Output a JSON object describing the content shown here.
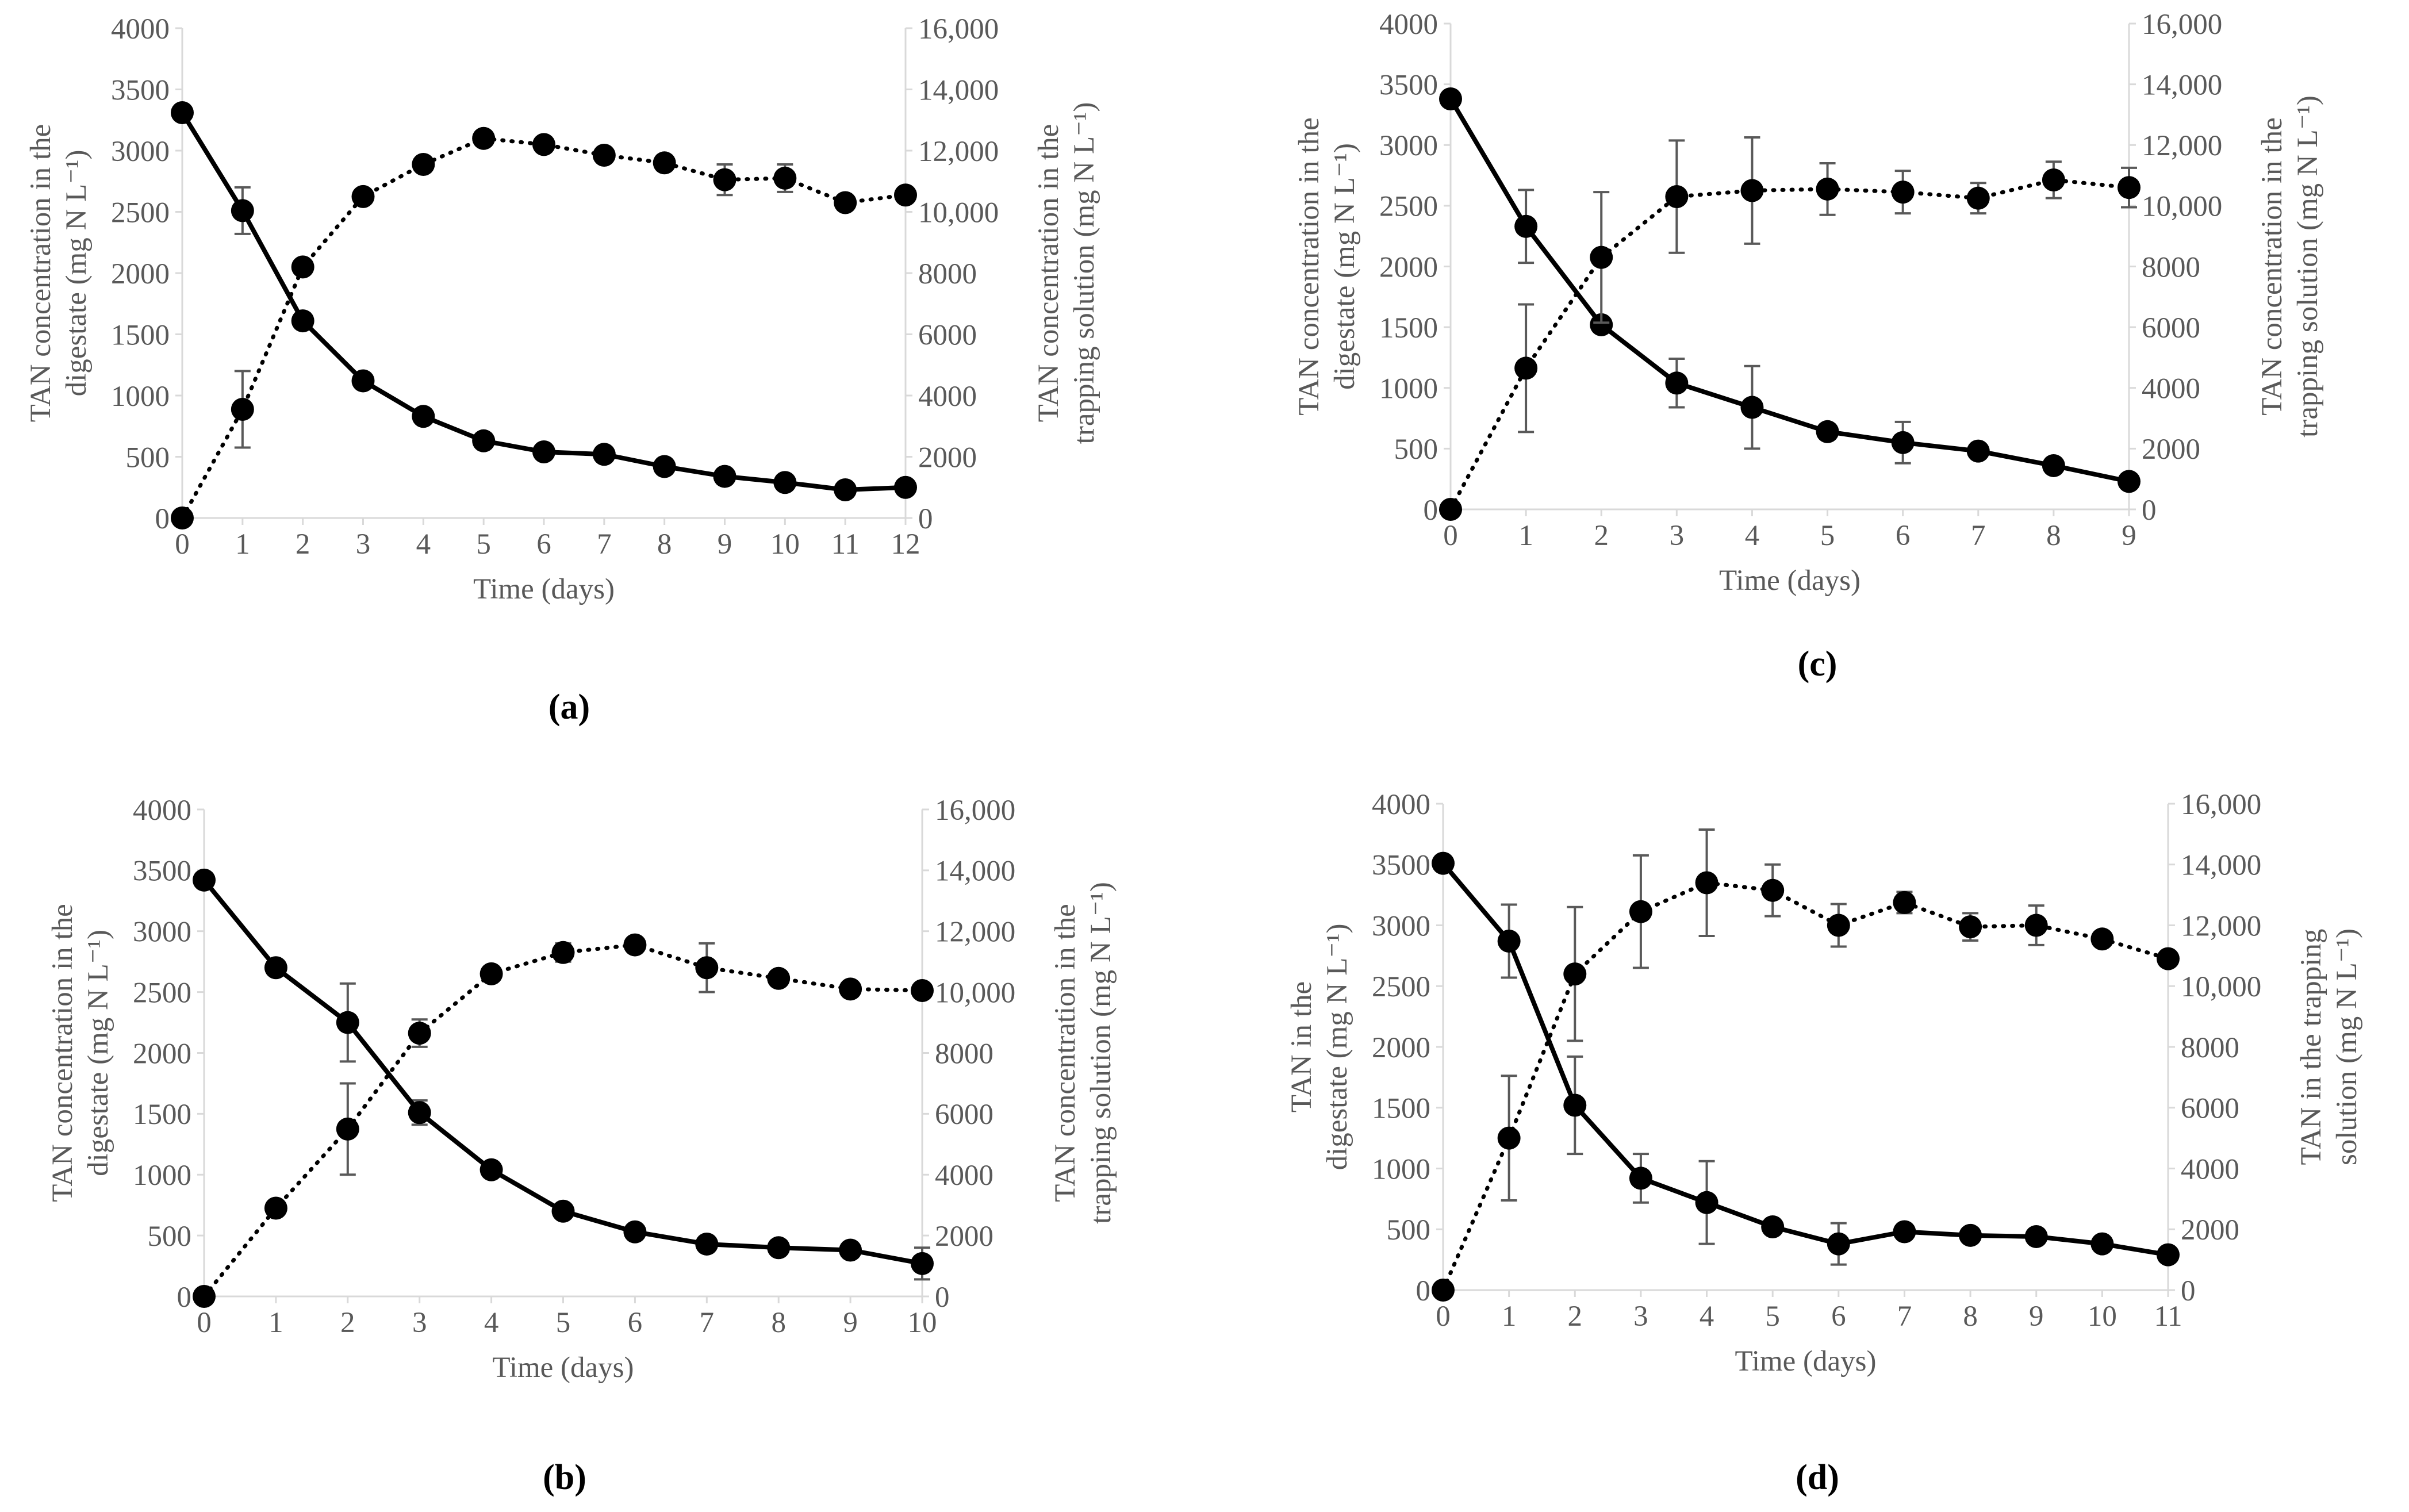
{
  "axis_color": "#d9d9d9",
  "tick_label_color": "#595959",
  "series_color": "#000000",
  "errorbar_color": "#595959",
  "chart_data": [
    {
      "panel": "a",
      "panel_label": "(a)",
      "type": "line",
      "xlabel": "Time (days)",
      "ylabel_left": [
        "TAN concentration in the",
        "digestate (mg N L⁻¹)"
      ],
      "ylabel_right": [
        "TAN concentration in the",
        "trapping  solution (mg N L⁻¹)"
      ],
      "x": [
        0,
        1,
        2,
        3,
        4,
        5,
        6,
        7,
        8,
        9,
        10,
        11,
        12
      ],
      "xlim": [
        0,
        12
      ],
      "ylim_left": [
        0,
        4000
      ],
      "ylim_right": [
        0,
        16000
      ],
      "left_ticks": [
        "0",
        "500",
        "1000",
        "1500",
        "2000",
        "2500",
        "3000",
        "3500",
        "4000"
      ],
      "right_ticks": [
        "0",
        "2000",
        "4000",
        "6000",
        "8000",
        "10,000",
        "12,000",
        "14,000",
        "16,000"
      ],
      "series": [
        {
          "axis": "left",
          "style": "solid",
          "values": [
            3310,
            2510,
            1610,
            1120,
            830,
            630,
            540,
            520,
            420,
            340,
            290,
            230,
            250
          ],
          "errors": [
            0,
            190,
            60,
            0,
            0,
            0,
            0,
            0,
            0,
            0,
            0,
            0,
            0
          ]
        },
        {
          "axis": "right",
          "style": "dotted",
          "values": [
            0,
            3550,
            8200,
            10500,
            11550,
            12400,
            12200,
            11850,
            11600,
            11050,
            11100,
            10300,
            10550
          ],
          "errors": [
            0,
            1250,
            0,
            0,
            0,
            0,
            0,
            0,
            0,
            500,
            450,
            0,
            0
          ]
        }
      ]
    },
    {
      "panel": "c",
      "panel_label": "(c)",
      "type": "line",
      "xlabel": "Time (days)",
      "ylabel_left": [
        "TAN concentration in the",
        "digestate (mg N L⁻¹)"
      ],
      "ylabel_right": [
        "TAN concentration in the",
        "trapping  solution (mg N L⁻¹)"
      ],
      "x": [
        0,
        1,
        2,
        3,
        4,
        5,
        6,
        7,
        8,
        9
      ],
      "xlim": [
        0,
        9
      ],
      "ylim_left": [
        0,
        4000
      ],
      "ylim_right": [
        0,
        16000
      ],
      "left_ticks": [
        "0",
        "500",
        "1000",
        "1500",
        "2000",
        "2500",
        "3000",
        "3500",
        "4000"
      ],
      "right_ticks": [
        "0",
        "2000",
        "4000",
        "6000",
        "8000",
        "10,000",
        "12,000",
        "14,000",
        "16,000"
      ],
      "series": [
        {
          "axis": "left",
          "style": "solid",
          "values": [
            3380,
            2330,
            1520,
            1040,
            840,
            640,
            550,
            480,
            360,
            230
          ],
          "errors": [
            0,
            300,
            0,
            200,
            340,
            0,
            170,
            0,
            0,
            0
          ]
        },
        {
          "axis": "right",
          "style": "dotted",
          "values": [
            0,
            4650,
            8300,
            10300,
            10500,
            10550,
            10450,
            10250,
            10850,
            10600
          ],
          "errors": [
            0,
            2100,
            2150,
            1850,
            1750,
            850,
            700,
            500,
            600,
            650
          ]
        }
      ]
    },
    {
      "panel": "b",
      "panel_label": "(b)",
      "type": "line",
      "xlabel": "Time (days)",
      "ylabel_left": [
        "TAN concentration in the",
        "digestate (mg N L⁻¹)"
      ],
      "ylabel_right": [
        "TAN concentration in the",
        "trapping  solution (mg N L⁻¹)"
      ],
      "x": [
        0,
        1,
        2,
        3,
        4,
        5,
        6,
        7,
        8,
        9,
        10
      ],
      "xlim": [
        0,
        10
      ],
      "ylim_left": [
        0,
        4000
      ],
      "ylim_right": [
        0,
        16000
      ],
      "left_ticks": [
        "0",
        "500",
        "1000",
        "1500",
        "2000",
        "2500",
        "3000",
        "3500",
        "4000"
      ],
      "right_ticks": [
        "0",
        "2000",
        "4000",
        "6000",
        "8000",
        "10,000",
        "12,000",
        "14,000",
        "16,000"
      ],
      "series": [
        {
          "axis": "left",
          "style": "solid",
          "values": [
            3420,
            2700,
            2250,
            1510,
            1040,
            700,
            530,
            430,
            400,
            380,
            270
          ],
          "errors": [
            0,
            0,
            320,
            100,
            0,
            0,
            0,
            0,
            0,
            0,
            130
          ]
        },
        {
          "axis": "right",
          "style": "dotted",
          "values": [
            0,
            2900,
            5500,
            8650,
            10600,
            11300,
            11550,
            10800,
            10450,
            10100,
            10050
          ],
          "errors": [
            0,
            0,
            1500,
            450,
            0,
            300,
            0,
            800,
            0,
            0,
            0
          ]
        }
      ]
    },
    {
      "panel": "d",
      "panel_label": "(d)",
      "type": "line",
      "xlabel": "Time (days)",
      "ylabel_left": [
        "TAN  in the",
        "digestate (mg N L⁻¹)"
      ],
      "ylabel_right": [
        "TAN in the trapping",
        "solution (mg N L⁻¹)"
      ],
      "x": [
        0,
        1,
        2,
        3,
        4,
        5,
        6,
        7,
        8,
        9,
        10,
        11
      ],
      "xlim": [
        0,
        11
      ],
      "ylim_left": [
        0,
        4000
      ],
      "ylim_right": [
        0,
        16000
      ],
      "left_ticks": [
        "0",
        "500",
        "1000",
        "1500",
        "2000",
        "2500",
        "3000",
        "3500",
        "4000"
      ],
      "right_ticks": [
        "0",
        "2000",
        "4000",
        "6000",
        "8000",
        "10,000",
        "12,000",
        "14,000",
        "16,000"
      ],
      "series": [
        {
          "axis": "left",
          "style": "solid",
          "values": [
            3510,
            2870,
            1520,
            920,
            720,
            520,
            380,
            480,
            450,
            440,
            380,
            290
          ],
          "errors": [
            0,
            300,
            400,
            200,
            340,
            0,
            170,
            0,
            0,
            0,
            0,
            0
          ]
        },
        {
          "axis": "right",
          "style": "dotted",
          "values": [
            0,
            5000,
            10400,
            12450,
            13400,
            13150,
            12000,
            12750,
            11950,
            12000,
            11550,
            10900
          ],
          "errors": [
            0,
            2050,
            2200,
            1850,
            1750,
            850,
            700,
            350,
            450,
            650,
            0,
            0
          ]
        }
      ]
    }
  ]
}
